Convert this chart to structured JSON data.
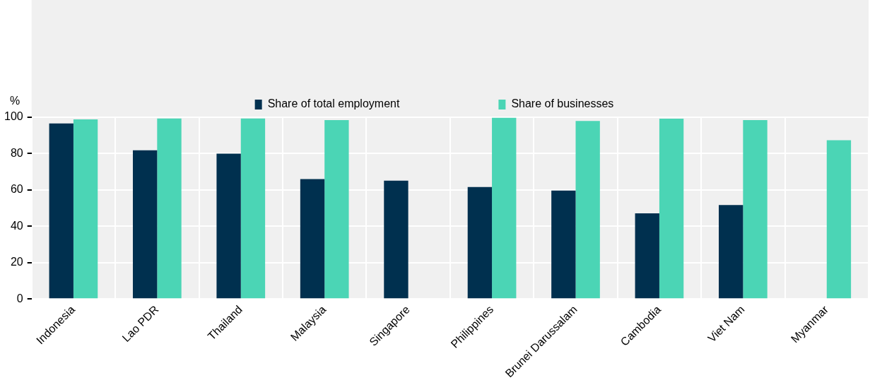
{
  "chart_data": {
    "type": "bar",
    "ylabel": "%",
    "categories": [
      "Indonesia",
      "Lao PDR",
      "Thailand",
      "Malaysia",
      "Singapore",
      "Philippines",
      "Brunei Darussalam",
      "Cambodia",
      "Viet Nam",
      "Myanmar"
    ],
    "series": [
      {
        "name": "Share of total employment",
        "color": "#00304f",
        "values": [
          96.6,
          81.8,
          80,
          66,
          65.1,
          61.6,
          59.7,
          47.1,
          51.7,
          null
        ]
      },
      {
        "name": "Share of businesses",
        "color": "#4bd5b5",
        "values": [
          98.8,
          99.3,
          99.3,
          98.4,
          null,
          99.7,
          98,
          99.2,
          98.4,
          87.4
        ]
      }
    ],
    "ylim": [
      0,
      100
    ],
    "yticks": [
      0,
      20,
      40,
      60,
      80,
      100
    ],
    "grid": true,
    "legend": "top"
  }
}
